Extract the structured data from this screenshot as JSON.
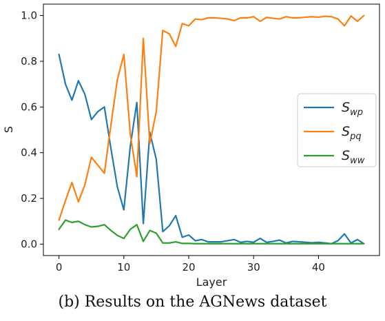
{
  "caption": "(b) Results on the AGNews dataset",
  "chart_data": {
    "type": "line",
    "title": "",
    "xlabel": "Layer",
    "ylabel": "S",
    "xlim": [
      -2.4,
      49.4
    ],
    "ylim": [
      -0.05,
      1.05
    ],
    "xticks": [
      0,
      10,
      20,
      30,
      40
    ],
    "yticks": [
      0.0,
      0.2,
      0.4,
      0.6,
      0.8,
      1.0
    ],
    "legend_position": "center-right",
    "grid": false,
    "x": [
      0,
      1,
      2,
      3,
      4,
      5,
      6,
      7,
      8,
      9,
      10,
      11,
      12,
      13,
      14,
      15,
      16,
      17,
      18,
      19,
      20,
      21,
      22,
      23,
      24,
      25,
      26,
      27,
      28,
      29,
      30,
      31,
      32,
      33,
      34,
      35,
      36,
      37,
      38,
      39,
      40,
      41,
      42,
      43,
      44,
      45,
      46,
      47
    ],
    "series": [
      {
        "name": "S",
        "subscript": "wp",
        "color": "#1f77b4",
        "values": [
          0.83,
          0.7,
          0.63,
          0.715,
          0.655,
          0.545,
          0.58,
          0.6,
          0.42,
          0.25,
          0.15,
          0.43,
          0.62,
          0.09,
          0.49,
          0.37,
          0.055,
          0.08,
          0.125,
          0.03,
          0.04,
          0.015,
          0.02,
          0.01,
          0.01,
          0.01,
          0.015,
          0.02,
          0.008,
          0.012,
          0.008,
          0.025,
          0.008,
          0.012,
          0.018,
          0.005,
          0.012,
          0.01,
          0.008,
          0.006,
          0.008,
          0.005,
          0.002,
          0.015,
          0.045,
          0.005,
          0.02,
          0.002
        ]
      },
      {
        "name": "S",
        "subscript": "pq",
        "color": "#ff7f0e",
        "values": [
          0.105,
          0.19,
          0.27,
          0.185,
          0.26,
          0.38,
          0.345,
          0.31,
          0.52,
          0.72,
          0.83,
          0.48,
          0.295,
          0.9,
          0.44,
          0.58,
          0.935,
          0.92,
          0.865,
          0.965,
          0.955,
          0.985,
          0.982,
          0.99,
          0.99,
          0.988,
          0.985,
          0.978,
          0.99,
          0.99,
          0.995,
          0.975,
          0.992,
          0.988,
          0.985,
          0.995,
          0.99,
          0.99,
          0.993,
          0.995,
          0.993,
          0.997,
          0.995,
          0.985,
          0.955,
          0.998,
          0.975,
          1.0
        ]
      },
      {
        "name": "S",
        "subscript": "ww",
        "color": "#2ca02c",
        "values": [
          0.065,
          0.105,
          0.095,
          0.1,
          0.085,
          0.075,
          0.078,
          0.085,
          0.06,
          0.038,
          0.025,
          0.065,
          0.085,
          0.012,
          0.06,
          0.048,
          0.005,
          0.005,
          0.01,
          0.003,
          0.003,
          0.002,
          0.002,
          0.002,
          0.002,
          0.002,
          0.002,
          0.002,
          0.002,
          0.002,
          0.002,
          0.002,
          0.002,
          0.002,
          0.002,
          0.002,
          0.002,
          0.002,
          0.002,
          0.002,
          0.002,
          0.002,
          0.002,
          0.002,
          0.002,
          0.002,
          0.002,
          0.002
        ]
      }
    ]
  }
}
